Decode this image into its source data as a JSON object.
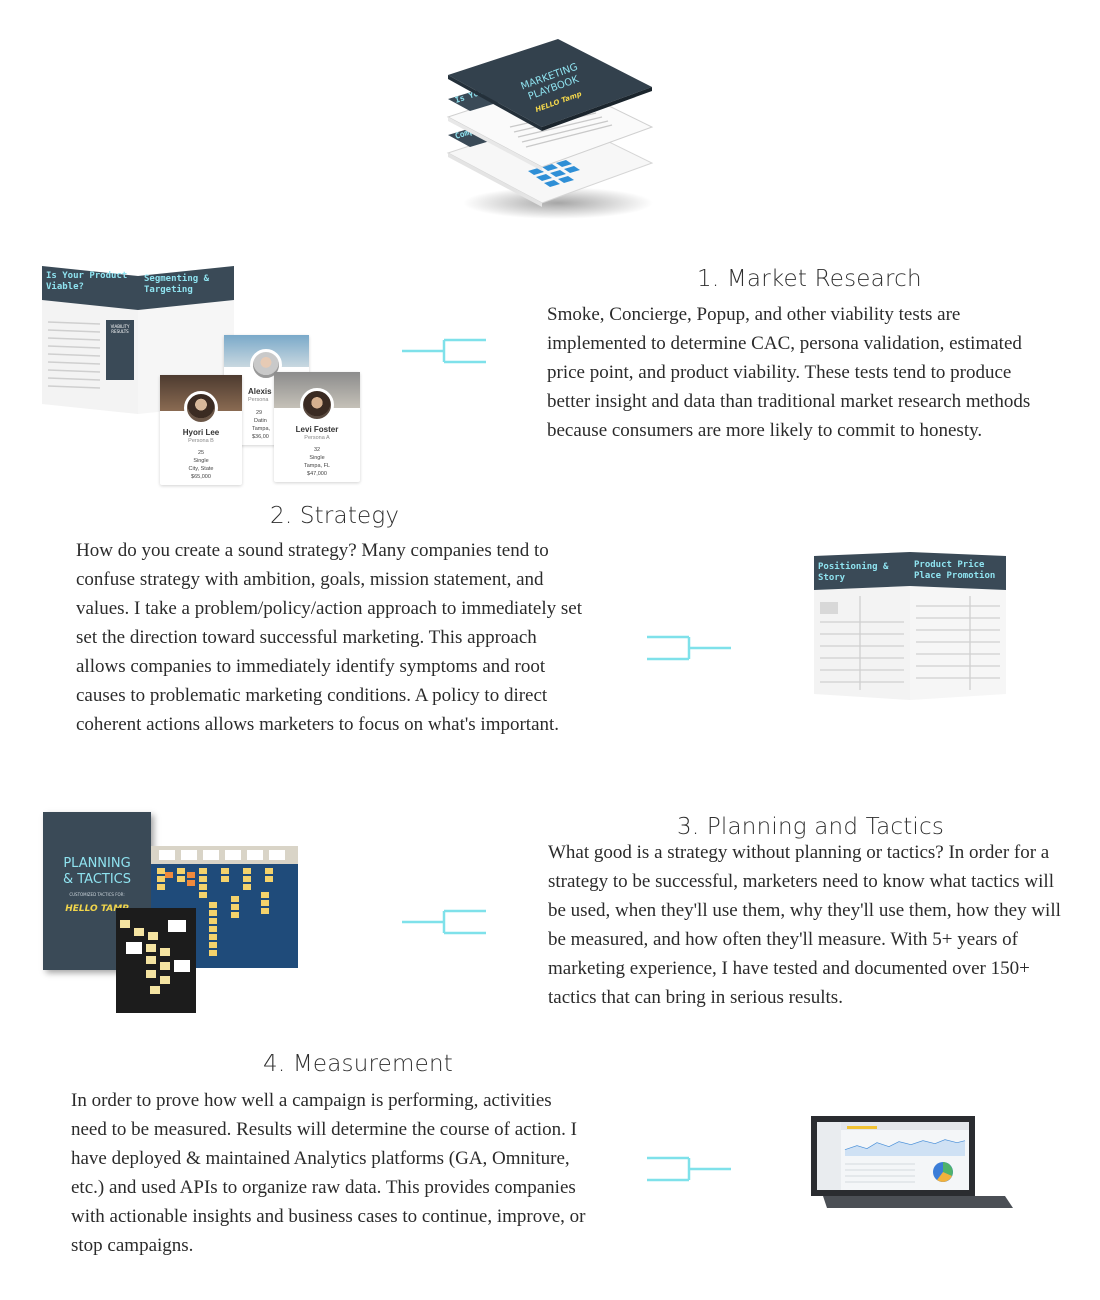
{
  "hero": {
    "cover_title_line1": "MARKETING",
    "cover_title_line2": "PLAYBOOK",
    "cover_brand": "HELLO Tamp",
    "layer2_title": "Is Your Viab",
    "layer3_title": "Comp Bench"
  },
  "sections": [
    {
      "heading": "1. Market Research",
      "body": "Smoke, Concierge, Popup, and other viability tests are implemented to determine CAC, persona validation, estimated price point, and product viability. These tests tend to produce better insight and data than traditional market research methods because consumers are more likely to commit to honesty."
    },
    {
      "heading": "2. Strategy",
      "body": "How do you create a sound strategy? Many companies tend to confuse strategy with ambition, goals, mission statement, and values. I take a problem/policy/action approach to immediately set set the direction toward successful marketing. This approach allows companies to immediately identify symptoms and root causes to problematic marketing conditions. A policy to direct coherent actions allows marketers to focus on what's important."
    },
    {
      "heading": "3. Planning and Tactics",
      "body": "What good is a strategy without planning or tactics? In order for a strategy to be successful, marketers need to know what tactics will be used, when they'll use them, why they'll use them, how they will be measured, and how often they'll measure. With 5+ years of marketing experience, I have tested and documented over 150+ tactics that can bring in serious results."
    },
    {
      "heading": "4. Measurement",
      "body": "In order to prove how well a campaign is performing, activities need to be measured. Results will determine the course of action. I have deployed & maintained Analytics platforms (GA, Omniture, etc.)  and used APIs to organize raw data. This provides companies with actionable insights and business cases to continue, improve, or stop campaigns."
    }
  ],
  "research_book": {
    "left_title": "Is Your Product Viable?",
    "right_title": "Segmenting & Targeting",
    "viability_label": "VIABILITY RESULTS",
    "personas": [
      {
        "name": "Hyori Lee",
        "role": "Persona B",
        "age": "25",
        "status": "Single",
        "city": "City, State",
        "income": "$65,000"
      },
      {
        "name": "Alexis",
        "role": "Persona",
        "age": "29",
        "status": "Datin",
        "city": "Tampa,",
        "income": "$36,00"
      },
      {
        "name": "Levi Foster",
        "role": "Persona A",
        "age": "32",
        "status": "Single",
        "city": "Tampa, FL",
        "income": "$47,000"
      }
    ]
  },
  "strategy_book": {
    "left_title": "Positioning & Story",
    "right_title": "Product Price Place Promotion"
  },
  "planning_book": {
    "title_line1": "PLANNING",
    "title_line2": "& TACTICS",
    "subtitle": "CUSTOMIZED TACTICS FOR:",
    "brand": "HELLO TAMP"
  },
  "colors": {
    "connector": "#7fe1ea",
    "book_dark": "#3a4a57",
    "book_accent": "#8fe3f0",
    "sticky": "#f4d26b",
    "board": "#1f4b7a"
  },
  "icons": [
    "connector-icon",
    "tablet-icon",
    "pie-chart-icon"
  ]
}
